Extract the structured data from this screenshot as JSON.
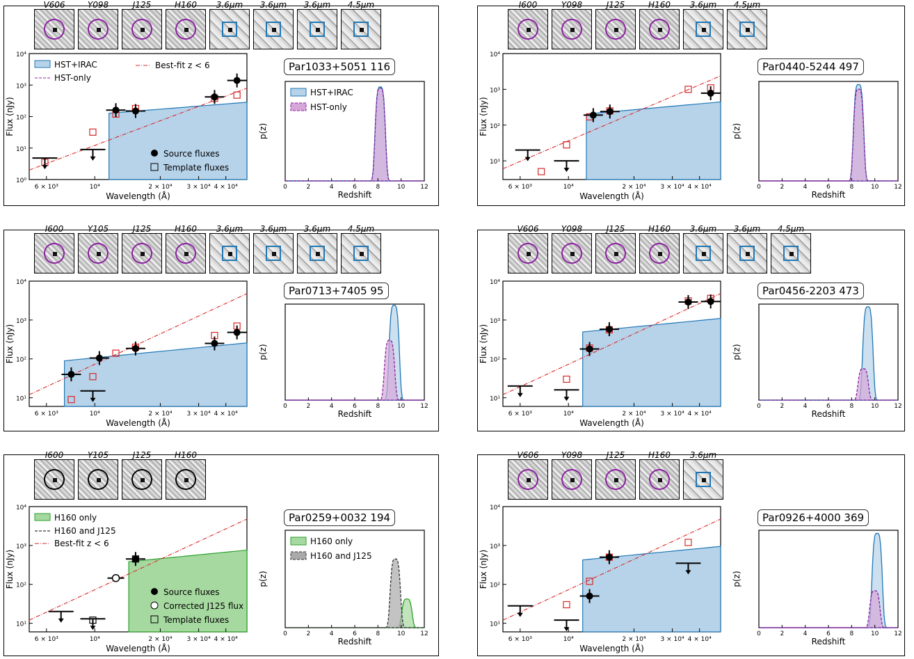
{
  "figure": {
    "panels": [
      {
        "id": "Par1033+5051 116",
        "label": "Par1033+5051 116",
        "stamps": [
          "V606",
          "Y098",
          "J125",
          "H160",
          "3.6μm",
          "3.6μm",
          "3.6μm",
          "4.5μm"
        ],
        "stamp_marks": [
          "circle",
          "circle",
          "circle",
          "circle",
          "square",
          "square",
          "square",
          "square"
        ],
        "sed": {
          "legend": [
            "HST+IRAC",
            "HST-only",
            "Best-fit z < 6"
          ],
          "point_legend": [
            "Source fluxes",
            "Template fluxes"
          ],
          "xlabel": "Wavelength (Å)",
          "ylabel": "Flux (nJy)"
        },
        "pz": {
          "legend": [
            "HST+IRAC",
            "HST-only"
          ],
          "xlabel": "Redshift",
          "ylabel": "p(z)"
        }
      },
      {
        "id": "Par0440-5244 497",
        "label": "Par0440-5244 497",
        "stamps": [
          "I600",
          "Y098",
          "J125",
          "H160",
          "3.6μm",
          "4.5μm"
        ],
        "stamp_marks": [
          "circle",
          "circle",
          "circle",
          "circle",
          "square",
          "square"
        ],
        "sed": {
          "xlabel": "Wavelength (Å)",
          "ylabel": "Flux (nJy)"
        },
        "pz": {
          "xlabel": "Redshift",
          "ylabel": "p(z)"
        }
      },
      {
        "id": "Par0713+7405 95",
        "label": "Par0713+7405 95",
        "stamps": [
          "I600",
          "Y105",
          "J125",
          "H160",
          "3.6μm",
          "3.6μm",
          "3.6μm",
          "4.5μm"
        ],
        "stamp_marks": [
          "circle",
          "circle",
          "circle",
          "circle",
          "square",
          "square",
          "square",
          "square"
        ],
        "sed": {
          "xlabel": "Wavelength (Å)",
          "ylabel": "Flux (nJy)"
        },
        "pz": {
          "xlabel": "Redshift",
          "ylabel": "p(z)"
        }
      },
      {
        "id": "Par0456-2203 473",
        "label": "Par0456-2203 473",
        "stamps": [
          "V606",
          "Y098",
          "J125",
          "H160",
          "3.6μm",
          "3.6μm",
          "4.5μm"
        ],
        "stamp_marks": [
          "circle",
          "circle",
          "circle",
          "circle",
          "square",
          "square",
          "square"
        ],
        "sed": {
          "xlabel": "Wavelength (Å)",
          "ylabel": "Flux (nJy)"
        },
        "pz": {
          "xlabel": "Redshift",
          "ylabel": "p(z)"
        }
      },
      {
        "id": "Par0259+0032 194",
        "label": "Par0259+0032 194",
        "stamps": [
          "I600",
          "Y105",
          "J125",
          "H160"
        ],
        "stamp_marks": [
          "circle_black",
          "circle_black",
          "circle_black",
          "circle_black"
        ],
        "sed": {
          "legend": [
            "H160 only",
            "H160 and J125",
            "Best-fit z < 6"
          ],
          "point_legend": [
            "Source fluxes",
            "Corrected J125 flux",
            "Template fluxes"
          ],
          "xlabel": "Wavelength (Å)",
          "ylabel": "Flux (nJy)"
        },
        "pz": {
          "legend": [
            "H160 only",
            "H160 and J125"
          ],
          "xlabel": "Redshift",
          "ylabel": "p(z)"
        }
      },
      {
        "id": "Par0926+4000 369",
        "label": "Par0926+4000 369",
        "stamps": [
          "V606",
          "Y098",
          "J125",
          "H160",
          "3.6μm"
        ],
        "stamp_marks": [
          "circle",
          "circle",
          "circle",
          "circle",
          "square"
        ],
        "sed": {
          "xlabel": "Wavelength (Å)",
          "ylabel": "Flux (nJy)"
        },
        "pz": {
          "xlabel": "Redshift",
          "ylabel": "p(z)"
        }
      }
    ]
  },
  "chart_data": [
    {
      "type": "line",
      "title": "Par1033+5051 116",
      "xlabel": "Wavelength (Å)",
      "ylabel": "Flux (nJy)",
      "x_scale": "log",
      "y_scale": "log",
      "xlim": [
        5000,
        50000
      ],
      "ylim": [
        1,
        10000
      ],
      "points_source": [
        [
          12500,
          160
        ],
        [
          15400,
          150
        ],
        [
          35500,
          420
        ],
        [
          45000,
          1400
        ]
      ],
      "upper_limits": [
        [
          5900,
          4.8
        ],
        [
          9800,
          9
        ]
      ],
      "template_points": [
        [
          5900,
          3.5
        ],
        [
          9800,
          32
        ],
        [
          12500,
          120
        ],
        [
          15400,
          180
        ],
        [
          35500,
          380
        ],
        [
          45000,
          480
        ]
      ],
      "pz": {
        "xlim": [
          0,
          12
        ],
        "ylim": [
          0,
          0.9
        ],
        "series": [
          {
            "name": "HST+IRAC",
            "peak_z": 8.2,
            "peak": 0.85
          },
          {
            "name": "HST-only",
            "peak_z": 8.2,
            "peak": 0.84
          }
        ]
      }
    },
    {
      "type": "line",
      "title": "Par0440-5244 497",
      "xlabel": "Wavelength (Å)",
      "ylabel": "Flux (nJy)",
      "x_scale": "log",
      "y_scale": "log",
      "xlim": [
        5000,
        50000
      ],
      "ylim": [
        3,
        10000
      ],
      "points_source": [
        [
          13000,
          190
        ],
        [
          15500,
          240
        ],
        [
          45000,
          780
        ]
      ],
      "upper_limits": [
        [
          6500,
          20
        ],
        [
          9800,
          10
        ]
      ],
      "template_points": [
        [
          7500,
          5
        ],
        [
          9800,
          28
        ],
        [
          12500,
          170
        ],
        [
          15500,
          250
        ],
        [
          35500,
          1000
        ],
        [
          45000,
          1100
        ]
      ],
      "pz": {
        "xlim": [
          0,
          12
        ],
        "ylim": [
          0,
          0.65
        ],
        "series": [
          {
            "name": "HST+IRAC",
            "peak_z": 8.6,
            "peak": 0.63
          },
          {
            "name": "HST-only",
            "peak_z": 8.6,
            "peak": 0.6
          }
        ]
      }
    },
    {
      "type": "line",
      "title": "Par0713+7405 95",
      "xlabel": "Wavelength (Å)",
      "ylabel": "Flux (nJy)",
      "x_scale": "log",
      "y_scale": "log",
      "xlim": [
        5000,
        50000
      ],
      "ylim": [
        6,
        10000
      ],
      "points_source": [
        [
          7800,
          40
        ],
        [
          10500,
          105
        ],
        [
          15400,
          185
        ],
        [
          35500,
          250
        ],
        [
          45000,
          480
        ]
      ],
      "upper_limits": [
        [
          9800,
          15
        ]
      ],
      "template_points": [
        [
          7800,
          9
        ],
        [
          9800,
          35
        ],
        [
          12500,
          140
        ],
        [
          15400,
          200
        ],
        [
          35500,
          400
        ],
        [
          45000,
          700
        ]
      ],
      "pz": {
        "xlim": [
          0,
          12
        ],
        "ylim": [
          0,
          0.85
        ],
        "series": [
          {
            "name": "HST+IRAC",
            "peak_z": 9.4,
            "peak": 0.84
          },
          {
            "name": "HST-only",
            "peak_z": 9.0,
            "peak": 0.53
          }
        ]
      }
    },
    {
      "type": "line",
      "title": "Par0456-2203 473",
      "xlabel": "Wavelength (Å)",
      "ylabel": "Flux (nJy)",
      "x_scale": "log",
      "y_scale": "log",
      "xlim": [
        5000,
        50000
      ],
      "ylim": [
        6,
        10000
      ],
      "points_source": [
        [
          12500,
          180
        ],
        [
          15400,
          580
        ],
        [
          35500,
          2900
        ],
        [
          45000,
          3000
        ]
      ],
      "upper_limits": [
        [
          6000,
          20
        ],
        [
          9800,
          16
        ]
      ],
      "template_points": [
        [
          9800,
          30
        ],
        [
          12500,
          190
        ],
        [
          15400,
          560
        ],
        [
          35500,
          3100
        ],
        [
          45000,
          3600
        ]
      ],
      "pz": {
        "xlim": [
          0,
          12
        ],
        "ylim": [
          0,
          1.1
        ],
        "series": [
          {
            "name": "HST+IRAC",
            "peak_z": 9.4,
            "peak": 1.07
          },
          {
            "name": "HST-only",
            "peak_z": 9.0,
            "peak": 0.36
          }
        ]
      }
    },
    {
      "type": "line",
      "title": "Par0259+0032 194",
      "xlabel": "Wavelength (Å)",
      "ylabel": "Flux (nJy)",
      "x_scale": "log",
      "y_scale": "log",
      "xlim": [
        5000,
        50000
      ],
      "ylim": [
        6,
        10000
      ],
      "points_source": [
        [
          15400,
          450
        ]
      ],
      "corrected_point": [
        [
          12500,
          145
        ]
      ],
      "upper_limits": [
        [
          7000,
          20
        ],
        [
          9800,
          13
        ]
      ],
      "template_points": [
        [
          9800,
          12
        ],
        [
          15400,
          450
        ]
      ],
      "pz": {
        "xlim": [
          0,
          12
        ],
        "ylim": [
          0,
          0.85
        ],
        "series": [
          {
            "name": "H160 only",
            "peak_z": 10.5,
            "peak": 0.25
          },
          {
            "name": "H160 and J125",
            "peak_z": 9.5,
            "peak": 0.6
          }
        ]
      }
    },
    {
      "type": "line",
      "title": "Par0926+4000 369",
      "xlabel": "Wavelength (Å)",
      "ylabel": "Flux (nJy)",
      "x_scale": "log",
      "y_scale": "log",
      "xlim": [
        5000,
        50000
      ],
      "ylim": [
        6,
        10000
      ],
      "points_source": [
        [
          12500,
          50
        ],
        [
          15400,
          500
        ]
      ],
      "upper_limits": [
        [
          6000,
          28
        ],
        [
          9800,
          12
        ],
        [
          35500,
          350
        ]
      ],
      "template_points": [
        [
          9800,
          30
        ],
        [
          12500,
          120
        ],
        [
          15400,
          500
        ],
        [
          35500,
          1200
        ]
      ],
      "pz": {
        "xlim": [
          0,
          12
        ],
        "ylim": [
          0,
          0.95
        ],
        "series": [
          {
            "name": "HST+IRAC",
            "peak_z": 10.2,
            "peak": 0.92
          },
          {
            "name": "HST-only",
            "peak_z": 10.0,
            "peak": 0.36
          }
        ]
      }
    }
  ]
}
